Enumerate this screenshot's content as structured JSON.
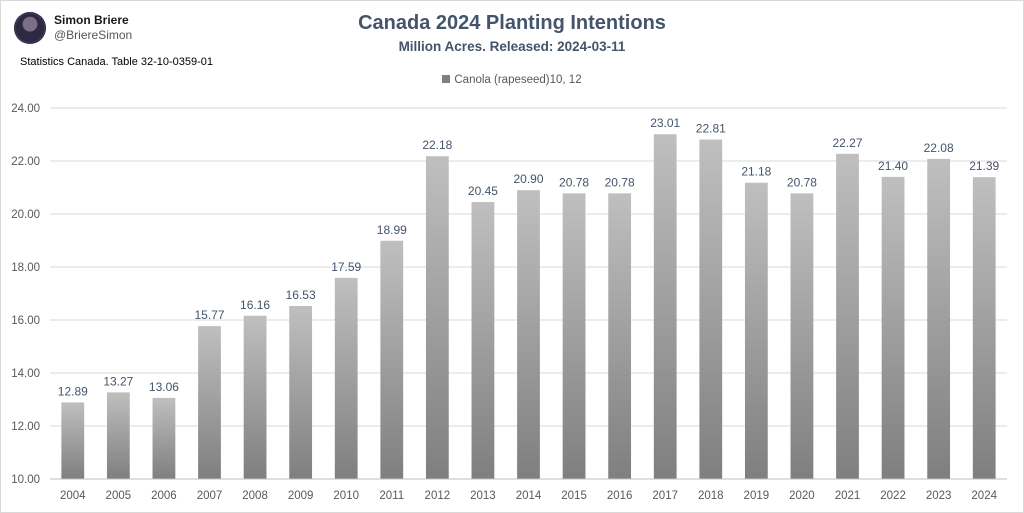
{
  "author": {
    "name": "Simon Briere",
    "handle": "@BriereSimon"
  },
  "source": "Statistics Canada. Table 32-10-0359-01",
  "chart_data": {
    "type": "bar",
    "title": "Canada 2024 Planting Intentions",
    "subtitle": "Million Acres. Released: 2024-03-11",
    "categories": [
      "2004",
      "2005",
      "2006",
      "2007",
      "2008",
      "2009",
      "2010",
      "2011",
      "2012",
      "2013",
      "2014",
      "2015",
      "2016",
      "2017",
      "2018",
      "2019",
      "2020",
      "2021",
      "2022",
      "2023",
      "2024"
    ],
    "series": [
      {
        "name": "Canola (rapeseed)10, 12",
        "values": [
          12.89,
          13.27,
          13.06,
          15.77,
          16.16,
          16.53,
          17.59,
          18.99,
          22.18,
          20.45,
          20.9,
          20.78,
          20.78,
          23.01,
          22.81,
          21.18,
          20.78,
          22.27,
          21.4,
          22.08,
          21.39
        ],
        "data_labels": [
          "12.89",
          "13.27",
          "13.06",
          "15.77",
          "16.16",
          "16.53",
          "17.59",
          "18.99",
          "22.18",
          "20.45",
          "20.90",
          "20.78",
          "20.78",
          "23.01",
          "22.81",
          "21.18",
          "20.78",
          "22.27",
          "21.40",
          "22.08",
          "21.39"
        ]
      }
    ],
    "ylim": [
      10,
      24
    ],
    "yticks": [
      "10.00",
      "12.00",
      "14.00",
      "16.00",
      "18.00",
      "20.00",
      "22.00",
      "24.00"
    ],
    "grid": true,
    "legend": "top-center",
    "colors": {
      "bar_top": "#bfbfbf",
      "bar_bottom": "#7f7f7f",
      "grid": "#d9d9d9",
      "title": "#44546a"
    }
  }
}
